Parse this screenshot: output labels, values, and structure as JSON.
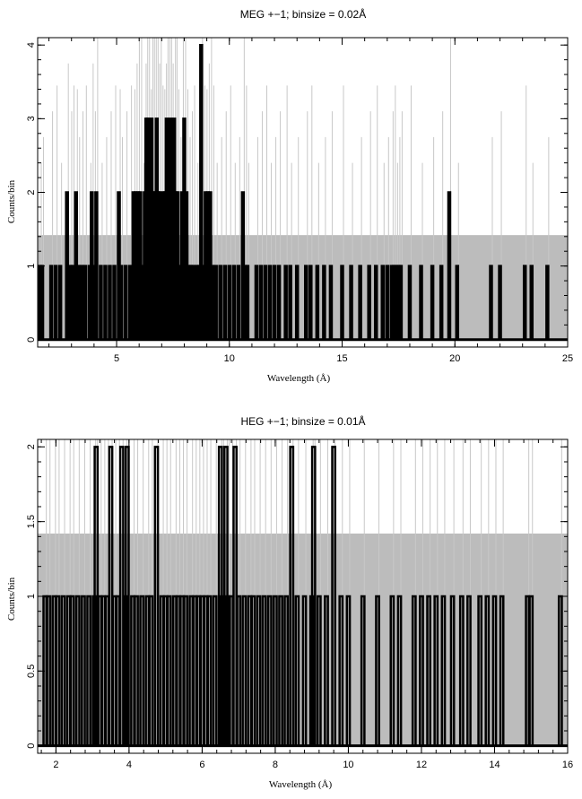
{
  "chart_data": [
    {
      "type": "histogram",
      "title": "MEG +−1; binsize = 0.02Å",
      "xlabel": "Wavelength (Å)",
      "ylabel": "Counts/bin",
      "xlim": [
        1.5,
        25
      ],
      "ylim": [
        -0.1,
        4.1
      ],
      "xticks": [
        5,
        10,
        15,
        20,
        25
      ],
      "yticks": [
        0,
        1,
        2,
        3,
        4
      ],
      "gray_threshold_band": 1.42,
      "colors": {
        "counts": "#000000",
        "model": "#c8c8c8",
        "band": "#bcbcbc"
      },
      "series": [
        {
          "role": "observed counts (black)",
          "values": [
            [
              1.6,
              1
            ],
            [
              1.7,
              1
            ],
            [
              2.1,
              1
            ],
            [
              2.3,
              1
            ],
            [
              2.5,
              1
            ],
            [
              2.8,
              2
            ],
            [
              2.95,
              1
            ],
            [
              3.05,
              1
            ],
            [
              3.2,
              2
            ],
            [
              3.3,
              1
            ],
            [
              3.45,
              1
            ],
            [
              3.6,
              1
            ],
            [
              3.8,
              1
            ],
            [
              3.9,
              2
            ],
            [
              4.0,
              1
            ],
            [
              4.1,
              2
            ],
            [
              4.3,
              1
            ],
            [
              4.5,
              1
            ],
            [
              4.7,
              1
            ],
            [
              4.9,
              1
            ],
            [
              5.1,
              2
            ],
            [
              5.2,
              1
            ],
            [
              5.4,
              1
            ],
            [
              5.6,
              1
            ],
            [
              5.75,
              2
            ],
            [
              5.85,
              2
            ],
            [
              5.95,
              2
            ],
            [
              6.05,
              2
            ],
            [
              6.15,
              1
            ],
            [
              6.25,
              2
            ],
            [
              6.32,
              3
            ],
            [
              6.4,
              3
            ],
            [
              6.48,
              2
            ],
            [
              6.55,
              3
            ],
            [
              6.62,
              2
            ],
            [
              6.7,
              2
            ],
            [
              6.78,
              3
            ],
            [
              6.85,
              2
            ],
            [
              6.92,
              2
            ],
            [
              7.0,
              1
            ],
            [
              7.08,
              2
            ],
            [
              7.15,
              2
            ],
            [
              7.22,
              3
            ],
            [
              7.3,
              2
            ],
            [
              7.38,
              3
            ],
            [
              7.45,
              2
            ],
            [
              7.55,
              3
            ],
            [
              7.62,
              2
            ],
            [
              7.7,
              2
            ],
            [
              7.8,
              1
            ],
            [
              7.9,
              2
            ],
            [
              8.0,
              3
            ],
            [
              8.1,
              2
            ],
            [
              8.2,
              1
            ],
            [
              8.3,
              1
            ],
            [
              8.4,
              1
            ],
            [
              8.55,
              1
            ],
            [
              8.65,
              1
            ],
            [
              8.75,
              4
            ],
            [
              8.85,
              1
            ],
            [
              8.95,
              2
            ],
            [
              9.05,
              2
            ],
            [
              9.15,
              2
            ],
            [
              9.25,
              1
            ],
            [
              9.4,
              1
            ],
            [
              9.6,
              1
            ],
            [
              9.8,
              1
            ],
            [
              10.0,
              1
            ],
            [
              10.2,
              1
            ],
            [
              10.4,
              1
            ],
            [
              10.6,
              2
            ],
            [
              10.7,
              1
            ],
            [
              10.8,
              1
            ],
            [
              11.2,
              1
            ],
            [
              11.4,
              1
            ],
            [
              11.6,
              1
            ],
            [
              11.8,
              1
            ],
            [
              12.0,
              1
            ],
            [
              12.2,
              1
            ],
            [
              12.5,
              1
            ],
            [
              12.7,
              1
            ],
            [
              13.0,
              1
            ],
            [
              13.4,
              1
            ],
            [
              13.6,
              1
            ],
            [
              13.9,
              1
            ],
            [
              14.2,
              1
            ],
            [
              14.5,
              1
            ],
            [
              15.0,
              1
            ],
            [
              15.4,
              1
            ],
            [
              15.8,
              1
            ],
            [
              16.2,
              1
            ],
            [
              16.5,
              1
            ],
            [
              16.8,
              1
            ],
            [
              17.0,
              1
            ],
            [
              17.2,
              1
            ],
            [
              17.3,
              1
            ],
            [
              17.4,
              1
            ],
            [
              17.5,
              1
            ],
            [
              17.6,
              1
            ],
            [
              18.0,
              1
            ],
            [
              18.5,
              1
            ],
            [
              19.0,
              1
            ],
            [
              19.4,
              1
            ],
            [
              19.75,
              2
            ],
            [
              20.1,
              1
            ],
            [
              21.6,
              1
            ],
            [
              22.0,
              1
            ],
            [
              23.1,
              1
            ],
            [
              23.4,
              1
            ],
            [
              24.1,
              1
            ]
          ]
        }
      ]
    },
    {
      "type": "histogram",
      "title": "HEG +−1; binsize = 0.01Å",
      "xlabel": "Wavelength (Å)",
      "ylabel": "Counts/bin",
      "xlim": [
        1.5,
        16
      ],
      "ylim": [
        -0.05,
        2.05
      ],
      "xticks": [
        2,
        4,
        6,
        8,
        10,
        12,
        14,
        16
      ],
      "yticks": [
        0,
        0.5,
        1,
        1.5,
        2
      ],
      "gray_threshold_band": 1.42,
      "colors": {
        "counts": "#000000",
        "model": "#c8c8c8",
        "band": "#bcbcbc"
      },
      "series": [
        {
          "role": "observed counts (black)",
          "values": [
            [
              1.7,
              1
            ],
            [
              1.8,
              1
            ],
            [
              1.95,
              1
            ],
            [
              2.05,
              1
            ],
            [
              2.2,
              1
            ],
            [
              2.35,
              1
            ],
            [
              2.45,
              1
            ],
            [
              2.6,
              1
            ],
            [
              2.75,
              1
            ],
            [
              2.9,
              1
            ],
            [
              3.05,
              1
            ],
            [
              3.1,
              2
            ],
            [
              3.2,
              1
            ],
            [
              3.3,
              1
            ],
            [
              3.4,
              1
            ],
            [
              3.5,
              2
            ],
            [
              3.6,
              1
            ],
            [
              3.7,
              1
            ],
            [
              3.8,
              2
            ],
            [
              3.9,
              1
            ],
            [
              3.95,
              2
            ],
            [
              4.1,
              1
            ],
            [
              4.2,
              1
            ],
            [
              4.35,
              1
            ],
            [
              4.5,
              1
            ],
            [
              4.6,
              1
            ],
            [
              4.75,
              2
            ],
            [
              4.9,
              1
            ],
            [
              5.0,
              1
            ],
            [
              5.1,
              1
            ],
            [
              5.25,
              1
            ],
            [
              5.35,
              1
            ],
            [
              5.45,
              1
            ],
            [
              5.55,
              1
            ],
            [
              5.7,
              1
            ],
            [
              5.8,
              1
            ],
            [
              5.9,
              1
            ],
            [
              6.0,
              1
            ],
            [
              6.1,
              1
            ],
            [
              6.2,
              1
            ],
            [
              6.35,
              1
            ],
            [
              6.5,
              2
            ],
            [
              6.55,
              1
            ],
            [
              6.65,
              2
            ],
            [
              6.7,
              1
            ],
            [
              6.8,
              1
            ],
            [
              6.9,
              2
            ],
            [
              7.0,
              1
            ],
            [
              7.15,
              1
            ],
            [
              7.3,
              1
            ],
            [
              7.4,
              1
            ],
            [
              7.55,
              1
            ],
            [
              7.7,
              1
            ],
            [
              7.85,
              1
            ],
            [
              8.0,
              1
            ],
            [
              8.15,
              1
            ],
            [
              8.3,
              1
            ],
            [
              8.45,
              2
            ],
            [
              8.6,
              1
            ],
            [
              8.8,
              1
            ],
            [
              9.0,
              1
            ],
            [
              9.05,
              2
            ],
            [
              9.2,
              1
            ],
            [
              9.4,
              1
            ],
            [
              9.6,
              2
            ],
            [
              9.8,
              1
            ],
            [
              10.0,
              1
            ],
            [
              10.4,
              1
            ],
            [
              10.8,
              1
            ],
            [
              11.2,
              1
            ],
            [
              11.4,
              1
            ],
            [
              11.8,
              1
            ],
            [
              12.0,
              1
            ],
            [
              12.2,
              1
            ],
            [
              12.4,
              1
            ],
            [
              12.6,
              1
            ],
            [
              12.85,
              1
            ],
            [
              13.1,
              1
            ],
            [
              13.3,
              1
            ],
            [
              13.6,
              1
            ],
            [
              13.8,
              1
            ],
            [
              14.0,
              1
            ],
            [
              14.2,
              1
            ],
            [
              14.9,
              1
            ],
            [
              15.0,
              1
            ],
            [
              15.8,
              1
            ]
          ]
        }
      ]
    }
  ]
}
